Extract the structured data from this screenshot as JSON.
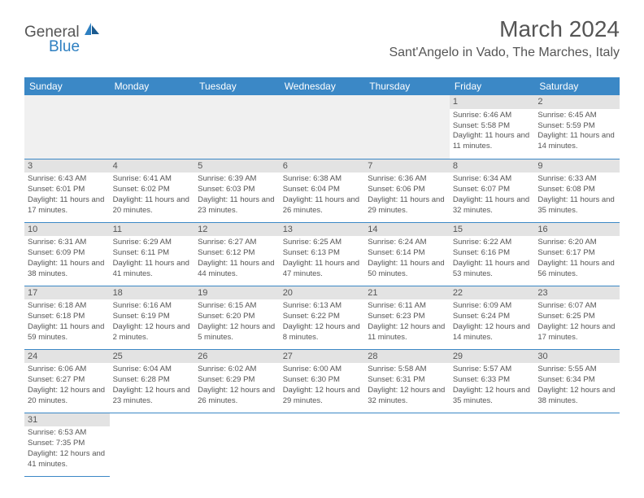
{
  "logo": {
    "general": "General",
    "blue": "Blue"
  },
  "header": {
    "month_title": "March 2024",
    "location": "Sant'Angelo in Vado, The Marches, Italy"
  },
  "day_headers": [
    "Sunday",
    "Monday",
    "Tuesday",
    "Wednesday",
    "Thursday",
    "Friday",
    "Saturday"
  ],
  "colors": {
    "header_bg": "#3b88c6",
    "header_text": "#ffffff",
    "text": "#555555",
    "daynum_bg": "#e3e3e3",
    "empty_bg": "#f0f0f0",
    "border": "#3b88c6",
    "logo_blue": "#2d7fc1"
  },
  "weeks": [
    [
      {
        "empty": true
      },
      {
        "empty": true
      },
      {
        "empty": true
      },
      {
        "empty": true
      },
      {
        "empty": true
      },
      {
        "day": "1",
        "sunrise": "Sunrise: 6:46 AM",
        "sunset": "Sunset: 5:58 PM",
        "daylight": "Daylight: 11 hours and 11 minutes."
      },
      {
        "day": "2",
        "sunrise": "Sunrise: 6:45 AM",
        "sunset": "Sunset: 5:59 PM",
        "daylight": "Daylight: 11 hours and 14 minutes."
      }
    ],
    [
      {
        "day": "3",
        "sunrise": "Sunrise: 6:43 AM",
        "sunset": "Sunset: 6:01 PM",
        "daylight": "Daylight: 11 hours and 17 minutes."
      },
      {
        "day": "4",
        "sunrise": "Sunrise: 6:41 AM",
        "sunset": "Sunset: 6:02 PM",
        "daylight": "Daylight: 11 hours and 20 minutes."
      },
      {
        "day": "5",
        "sunrise": "Sunrise: 6:39 AM",
        "sunset": "Sunset: 6:03 PM",
        "daylight": "Daylight: 11 hours and 23 minutes."
      },
      {
        "day": "6",
        "sunrise": "Sunrise: 6:38 AM",
        "sunset": "Sunset: 6:04 PM",
        "daylight": "Daylight: 11 hours and 26 minutes."
      },
      {
        "day": "7",
        "sunrise": "Sunrise: 6:36 AM",
        "sunset": "Sunset: 6:06 PM",
        "daylight": "Daylight: 11 hours and 29 minutes."
      },
      {
        "day": "8",
        "sunrise": "Sunrise: 6:34 AM",
        "sunset": "Sunset: 6:07 PM",
        "daylight": "Daylight: 11 hours and 32 minutes."
      },
      {
        "day": "9",
        "sunrise": "Sunrise: 6:33 AM",
        "sunset": "Sunset: 6:08 PM",
        "daylight": "Daylight: 11 hours and 35 minutes."
      }
    ],
    [
      {
        "day": "10",
        "sunrise": "Sunrise: 6:31 AM",
        "sunset": "Sunset: 6:09 PM",
        "daylight": "Daylight: 11 hours and 38 minutes."
      },
      {
        "day": "11",
        "sunrise": "Sunrise: 6:29 AM",
        "sunset": "Sunset: 6:11 PM",
        "daylight": "Daylight: 11 hours and 41 minutes."
      },
      {
        "day": "12",
        "sunrise": "Sunrise: 6:27 AM",
        "sunset": "Sunset: 6:12 PM",
        "daylight": "Daylight: 11 hours and 44 minutes."
      },
      {
        "day": "13",
        "sunrise": "Sunrise: 6:25 AM",
        "sunset": "Sunset: 6:13 PM",
        "daylight": "Daylight: 11 hours and 47 minutes."
      },
      {
        "day": "14",
        "sunrise": "Sunrise: 6:24 AM",
        "sunset": "Sunset: 6:14 PM",
        "daylight": "Daylight: 11 hours and 50 minutes."
      },
      {
        "day": "15",
        "sunrise": "Sunrise: 6:22 AM",
        "sunset": "Sunset: 6:16 PM",
        "daylight": "Daylight: 11 hours and 53 minutes."
      },
      {
        "day": "16",
        "sunrise": "Sunrise: 6:20 AM",
        "sunset": "Sunset: 6:17 PM",
        "daylight": "Daylight: 11 hours and 56 minutes."
      }
    ],
    [
      {
        "day": "17",
        "sunrise": "Sunrise: 6:18 AM",
        "sunset": "Sunset: 6:18 PM",
        "daylight": "Daylight: 11 hours and 59 minutes."
      },
      {
        "day": "18",
        "sunrise": "Sunrise: 6:16 AM",
        "sunset": "Sunset: 6:19 PM",
        "daylight": "Daylight: 12 hours and 2 minutes."
      },
      {
        "day": "19",
        "sunrise": "Sunrise: 6:15 AM",
        "sunset": "Sunset: 6:20 PM",
        "daylight": "Daylight: 12 hours and 5 minutes."
      },
      {
        "day": "20",
        "sunrise": "Sunrise: 6:13 AM",
        "sunset": "Sunset: 6:22 PM",
        "daylight": "Daylight: 12 hours and 8 minutes."
      },
      {
        "day": "21",
        "sunrise": "Sunrise: 6:11 AM",
        "sunset": "Sunset: 6:23 PM",
        "daylight": "Daylight: 12 hours and 11 minutes."
      },
      {
        "day": "22",
        "sunrise": "Sunrise: 6:09 AM",
        "sunset": "Sunset: 6:24 PM",
        "daylight": "Daylight: 12 hours and 14 minutes."
      },
      {
        "day": "23",
        "sunrise": "Sunrise: 6:07 AM",
        "sunset": "Sunset: 6:25 PM",
        "daylight": "Daylight: 12 hours and 17 minutes."
      }
    ],
    [
      {
        "day": "24",
        "sunrise": "Sunrise: 6:06 AM",
        "sunset": "Sunset: 6:27 PM",
        "daylight": "Daylight: 12 hours and 20 minutes."
      },
      {
        "day": "25",
        "sunrise": "Sunrise: 6:04 AM",
        "sunset": "Sunset: 6:28 PM",
        "daylight": "Daylight: 12 hours and 23 minutes."
      },
      {
        "day": "26",
        "sunrise": "Sunrise: 6:02 AM",
        "sunset": "Sunset: 6:29 PM",
        "daylight": "Daylight: 12 hours and 26 minutes."
      },
      {
        "day": "27",
        "sunrise": "Sunrise: 6:00 AM",
        "sunset": "Sunset: 6:30 PM",
        "daylight": "Daylight: 12 hours and 29 minutes."
      },
      {
        "day": "28",
        "sunrise": "Sunrise: 5:58 AM",
        "sunset": "Sunset: 6:31 PM",
        "daylight": "Daylight: 12 hours and 32 minutes."
      },
      {
        "day": "29",
        "sunrise": "Sunrise: 5:57 AM",
        "sunset": "Sunset: 6:33 PM",
        "daylight": "Daylight: 12 hours and 35 minutes."
      },
      {
        "day": "30",
        "sunrise": "Sunrise: 5:55 AM",
        "sunset": "Sunset: 6:34 PM",
        "daylight": "Daylight: 12 hours and 38 minutes."
      }
    ],
    [
      {
        "day": "31",
        "sunrise": "Sunrise: 6:53 AM",
        "sunset": "Sunset: 7:35 PM",
        "daylight": "Daylight: 12 hours and 41 minutes."
      },
      {
        "blank": true
      },
      {
        "blank": true
      },
      {
        "blank": true
      },
      {
        "blank": true
      },
      {
        "blank": true
      },
      {
        "blank": true
      }
    ]
  ]
}
